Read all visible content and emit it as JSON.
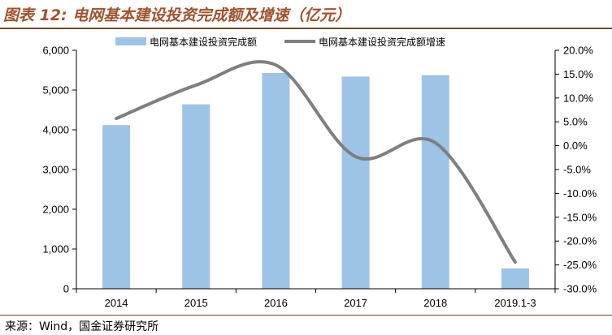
{
  "header": {
    "figure_label": "图表 12:",
    "title_text": "电网基本建设投资完成额及增速（亿元）"
  },
  "source": "来源：Wind，国金证券研究所",
  "colors": {
    "bar": "#9dc3e6",
    "line": "#7f7f7f",
    "title": "#a0522d",
    "rule": "#6e4a29"
  },
  "chart_data": {
    "type": "bar",
    "categories": [
      "2014",
      "2015",
      "2016",
      "2017",
      "2018",
      "2019.1-3"
    ],
    "series": [
      {
        "name": "电网基本建设投资完成额",
        "type": "bar",
        "axis": "left",
        "values": [
          4118,
          4640,
          5431,
          5339,
          5373,
          511
        ]
      },
      {
        "name": "电网基本建设投资完成额增速",
        "type": "line",
        "axis": "right",
        "values": [
          5.7,
          12.7,
          16.9,
          -2.3,
          0.6,
          -24.4
        ]
      }
    ],
    "left_axis": {
      "min": 0,
      "max": 6000,
      "ticks": [
        0,
        1000,
        2000,
        3000,
        4000,
        5000,
        6000
      ],
      "tick_labels": [
        "0",
        "1,000",
        "2,000",
        "3,000",
        "4,000",
        "5,000",
        "6,000"
      ]
    },
    "right_axis": {
      "min": -30,
      "max": 20,
      "ticks": [
        -30,
        -25,
        -20,
        -15,
        -10,
        -5,
        0,
        5,
        10,
        15,
        20
      ],
      "tick_labels": [
        "-30.0%",
        "-25.0%",
        "-20.0%",
        "-15.0%",
        "-10.0%",
        "-5.0%",
        "0.0%",
        "5.0%",
        "10.0%",
        "15.0%",
        "20.0%"
      ]
    },
    "legend_position": "top-center",
    "grid": false
  }
}
